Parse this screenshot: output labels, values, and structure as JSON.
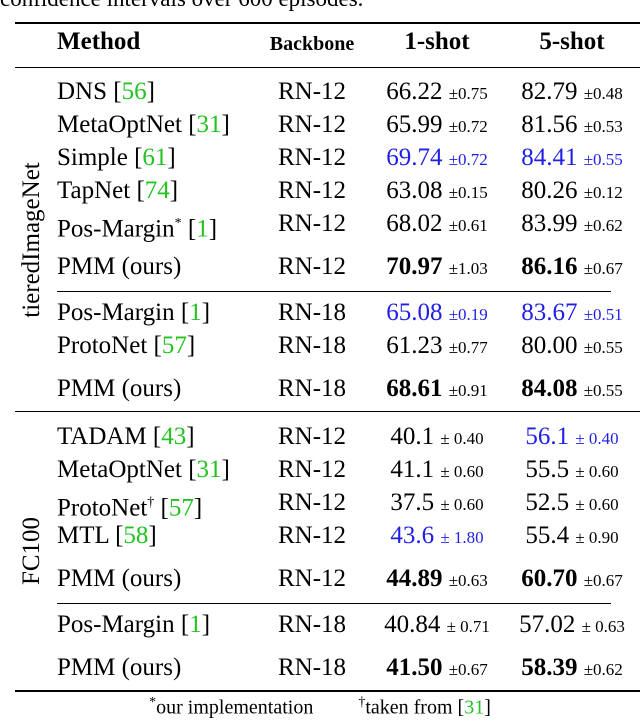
{
  "caption_fragment": "confidence intervals over 600 episodes.",
  "headers": {
    "method": "Method",
    "backbone": "Backbone",
    "shot1": "1-shot",
    "shot5": "5-shot"
  },
  "groups": [
    {
      "label": "tieredImageNet",
      "rows": [
        {
          "method": "DNS",
          "sup": "",
          "ref": "56",
          "backbone": "RN-12",
          "s1": "66.22",
          "s1pm": "±0.75",
          "s5": "82.79",
          "s5pm": "±0.48",
          "s1style": "",
          "s5style": ""
        },
        {
          "method": "MetaOptNet",
          "sup": "",
          "ref": "31",
          "backbone": "RN-12",
          "s1": "65.99",
          "s1pm": "±0.72",
          "s5": "81.56",
          "s5pm": "±0.53",
          "s1style": "",
          "s5style": ""
        },
        {
          "method": "Simple",
          "sup": "",
          "ref": "61",
          "backbone": "RN-12",
          "s1": "69.74",
          "s1pm": "±0.72",
          "s5": "84.41",
          "s5pm": "±0.55",
          "s1style": "blue",
          "s5style": "blue"
        },
        {
          "method": "TapNet",
          "sup": "",
          "ref": "74",
          "backbone": "RN-12",
          "s1": "63.08",
          "s1pm": "±0.15",
          "s5": "80.26",
          "s5pm": "±0.12",
          "s1style": "",
          "s5style": ""
        },
        {
          "method": "Pos-Margin",
          "sup": "*",
          "ref": "1",
          "backbone": "RN-12",
          "s1": "68.02",
          "s1pm": "±0.61",
          "s5": "83.99",
          "s5pm": "±0.62",
          "s1style": "",
          "s5style": ""
        },
        {
          "method": "PMM (ours)",
          "sup": "",
          "ref": "",
          "backbone": "RN-12",
          "s1": "70.97",
          "s1pm": "±1.03",
          "s5": "86.16",
          "s5pm": "±0.67",
          "s1style": "bold",
          "s5style": "bold"
        },
        {
          "method": "Pos-Margin",
          "sup": "",
          "ref": "1",
          "backbone": "RN-18",
          "s1": "65.08",
          "s1pm": "±0.19",
          "s5": "83.67",
          "s5pm": "±0.51",
          "s1style": "blue",
          "s5style": "blue"
        },
        {
          "method": "ProtoNet",
          "sup": "",
          "ref": "57",
          "backbone": "RN-18",
          "s1": "61.23",
          "s1pm": "±0.77",
          "s5": "80.00",
          "s5pm": "±0.55",
          "s1style": "",
          "s5style": ""
        },
        {
          "method": "PMM (ours)",
          "sup": "",
          "ref": "",
          "backbone": "RN-18",
          "s1": "68.61",
          "s1pm": "±0.91",
          "s5": "84.08",
          "s5pm": "±0.55",
          "s1style": "bold",
          "s5style": "bold"
        }
      ]
    },
    {
      "label": "FC100",
      "rows": [
        {
          "method": "TADAM",
          "sup": "",
          "ref": "43",
          "backbone": "RN-12",
          "s1": "40.1",
          "s1pm": "± 0.40",
          "s5": "56.1",
          "s5pm": "± 0.40",
          "s1style": "",
          "s5style": "blue"
        },
        {
          "method": "MetaOptNet",
          "sup": "",
          "ref": "31",
          "backbone": "RN-12",
          "s1": "41.1",
          "s1pm": "± 0.60",
          "s5": "55.5",
          "s5pm": "± 0.60",
          "s1style": "",
          "s5style": ""
        },
        {
          "method": "ProtoNet",
          "sup": "†",
          "ref": "57",
          "backbone": "RN-12",
          "s1": "37.5",
          "s1pm": "± 0.60",
          "s5": "52.5",
          "s5pm": "± 0.60",
          "s1style": "",
          "s5style": ""
        },
        {
          "method": "MTL",
          "sup": "",
          "ref": "58",
          "backbone": "RN-12",
          "s1": "43.6",
          "s1pm": "± 1.80",
          "s5": "55.4",
          "s5pm": "± 0.90",
          "s1style": "blue",
          "s5style": ""
        },
        {
          "method": "PMM (ours)",
          "sup": "",
          "ref": "",
          "backbone": "RN-12",
          "s1": "44.89",
          "s1pm": "±0.63",
          "s5": "60.70",
          "s5pm": "±0.67",
          "s1style": "bold",
          "s5style": "bold"
        },
        {
          "method": "Pos-Margin",
          "sup": "",
          "ref": "1",
          "backbone": "RN-18",
          "s1": "40.84",
          "s1pm": "± 0.71",
          "s5": "57.02",
          "s5pm": "± 0.63",
          "s1style": "",
          "s5style": ""
        },
        {
          "method": "PMM (ours)",
          "sup": "",
          "ref": "",
          "backbone": "RN-18",
          "s1": "41.50",
          "s1pm": "±0.67",
          "s5": "58.39",
          "s5pm": "±0.62",
          "s1style": "bold",
          "s5style": "bold"
        }
      ]
    }
  ],
  "footnotes": {
    "star_mark": "*",
    "star_text": "our implementation",
    "dagger_mark": "†",
    "dagger_text": "taken from [",
    "dagger_ref": "31",
    "dagger_close": "]"
  },
  "colors": {
    "best_second": "#1f1fe6",
    "citation": "#22c322"
  }
}
